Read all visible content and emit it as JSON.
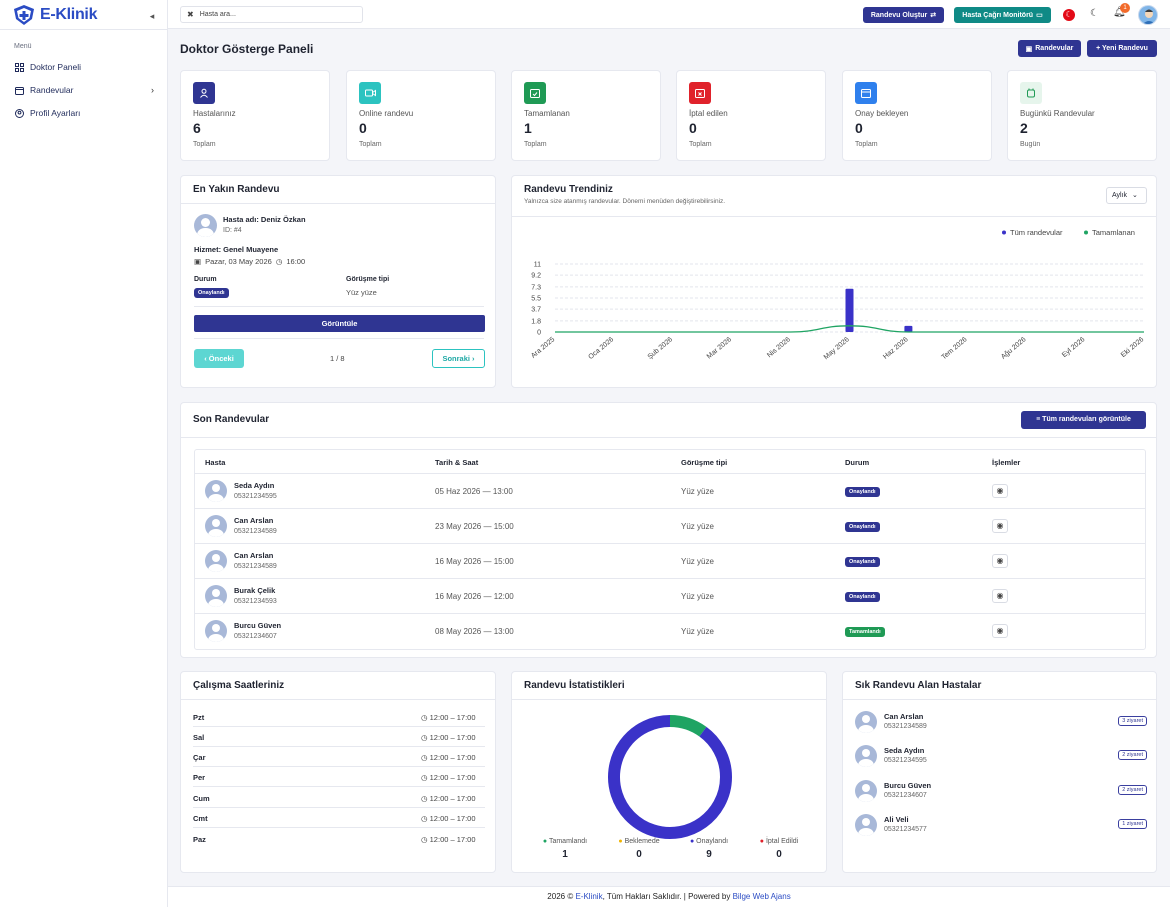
{
  "brand": {
    "name": "E-Klinik"
  },
  "sidebar": {
    "menu_label": "Menü",
    "items": [
      {
        "label": "Doktor Paneli",
        "icon": "grid-icon"
      },
      {
        "label": "Randevular",
        "icon": "calendar-icon"
      },
      {
        "label": "Profil Ayarları",
        "icon": "user-circle-icon"
      }
    ]
  },
  "topbar": {
    "search_placeholder": "Hasta ara...",
    "create_appointment": "Randevu Oluştur",
    "patient_call_monitor": "Hasta Çağrı Monitörü",
    "notification_count": "1",
    "colors": {
      "primary": "#2f3592",
      "teal": "#0f8a86",
      "flag": "#e30a17"
    }
  },
  "page": {
    "title": "Doktor Gösterge Paneli",
    "btn_appointments": "Randevular",
    "btn_new_appointment": "+ Yeni Randevu"
  },
  "stats": [
    {
      "label": "Hastalarınız",
      "value": "6",
      "sub": "Toplam",
      "color": "#2f3592",
      "icon": "user-icon"
    },
    {
      "label": "Online randevu",
      "value": "0",
      "sub": "Toplam",
      "color": "#2cc3c0",
      "icon": "video-icon"
    },
    {
      "label": "Tamamlanan",
      "value": "1",
      "sub": "Toplam",
      "color": "#1f9a55",
      "icon": "calendar-check-icon"
    },
    {
      "label": "İptal edilen",
      "value": "0",
      "sub": "Toplam",
      "color": "#e0222b",
      "icon": "calendar-x-icon"
    },
    {
      "label": "Onay bekleyen",
      "value": "0",
      "sub": "Toplam",
      "color": "#2f80ed",
      "icon": "calendar-clock-icon"
    },
    {
      "label": "Bugünkü Randevular",
      "value": "2",
      "sub": "Bugün",
      "color": "#e6f5ec",
      "icon": "alarm-icon"
    }
  ],
  "nearest": {
    "title": "En Yakın Randevu",
    "patient_label": "Hasta adı: Deniz Özkan",
    "id_label": "ID: #4",
    "service_label": "Hizmet: Genel Muayene",
    "date": "Pazar, 03 May 2026",
    "time": "16:00",
    "status_label": "Durum",
    "status_value": "Onaylandı",
    "type_label": "Görüşme tipi",
    "type_value": "Yüz yüze",
    "view_button": "Görüntüle",
    "prev": "‹ Önceki",
    "next": "Sonraki ›",
    "pager": "1 / 8"
  },
  "trend": {
    "title": "Randevu Trendiniz",
    "subtitle": "Yalnızca size atanmış randevular. Dönemi menüden değiştirebilirsiniz.",
    "period": "Aylık"
  },
  "chart_data": {
    "type": "bar",
    "categories": [
      "Ara 2025",
      "Oca 2026",
      "Şub 2026",
      "Mar 2026",
      "Nis 2026",
      "May 2026",
      "Haz 2026",
      "Tem 2026",
      "Ağu 2026",
      "Eyl 2026",
      "Eki 2026"
    ],
    "series": [
      {
        "name": "Tüm randevular",
        "type": "bar",
        "color": "#3a32c8",
        "values": [
          0,
          0,
          0,
          0,
          0,
          7,
          1,
          0,
          0,
          0,
          0
        ]
      },
      {
        "name": "Tamamlanan",
        "type": "line",
        "color": "#1fa463",
        "values": [
          0,
          0,
          0,
          0,
          0,
          1,
          0,
          0,
          0,
          0,
          0
        ]
      }
    ],
    "yticks": [
      "11",
      "9.2",
      "7.3",
      "5.5",
      "3.7",
      "1.8",
      "0"
    ],
    "ylim": [
      0,
      11
    ],
    "grid": true,
    "legend": "top-right"
  },
  "recent": {
    "title": "Son Randevular",
    "view_all": "Tüm randevuları görüntüle",
    "columns": [
      "Hasta",
      "Tarih & Saat",
      "Görüşme tipi",
      "Durum",
      "İşlemler"
    ],
    "rows": [
      {
        "name": "Seda Aydın",
        "phone": "05321234595",
        "date": "05 Haz 2026 — 13:00",
        "type": "Yüz yüze",
        "status": "Onaylandı",
        "status_color": "#2f3592"
      },
      {
        "name": "Can Arslan",
        "phone": "05321234589",
        "date": "23 May 2026 — 15:00",
        "type": "Yüz yüze",
        "status": "Onaylandı",
        "status_color": "#2f3592"
      },
      {
        "name": "Can Arslan",
        "phone": "05321234589",
        "date": "16 May 2026 — 15:00",
        "type": "Yüz yüze",
        "status": "Onaylandı",
        "status_color": "#2f3592"
      },
      {
        "name": "Burak Çelik",
        "phone": "05321234593",
        "date": "16 May 2026 — 12:00",
        "type": "Yüz yüze",
        "status": "Onaylandı",
        "status_color": "#2f3592"
      },
      {
        "name": "Burcu Güven",
        "phone": "05321234607",
        "date": "08 May 2026 — 13:00",
        "type": "Yüz yüze",
        "status": "Tamamlandı",
        "status_color": "#1f9a55"
      }
    ]
  },
  "hours": {
    "title": "Çalışma Saatleriniz",
    "rows": [
      {
        "day": "Pzt",
        "time": "12:00 – 17:00"
      },
      {
        "day": "Sal",
        "time": "12:00 – 17:00"
      },
      {
        "day": "Çar",
        "time": "12:00 – 17:00"
      },
      {
        "day": "Per",
        "time": "12:00 – 17:00"
      },
      {
        "day": "Cum",
        "time": "12:00 – 17:00"
      },
      {
        "day": "Cmt",
        "time": "12:00 – 17:00"
      },
      {
        "day": "Paz",
        "time": "12:00 – 17:00"
      }
    ]
  },
  "stats_donut": {
    "title": "Randevu İstatistikleri",
    "items": [
      {
        "label": "Tamamlandı",
        "value": 1,
        "color": "#1fa463"
      },
      {
        "label": "Beklemede",
        "value": 0,
        "color": "#f0b400"
      },
      {
        "label": "Onaylandı",
        "value": 9,
        "color": "#3a32c8"
      },
      {
        "label": "İptal Edildi",
        "value": 0,
        "color": "#e0222b"
      }
    ]
  },
  "frequent": {
    "title": "Sık Randevu Alan Hastalar",
    "rows": [
      {
        "name": "Can Arslan",
        "phone": "05321234589",
        "visits": "3 ziyaret"
      },
      {
        "name": "Seda Aydın",
        "phone": "05321234595",
        "visits": "2 ziyaret"
      },
      {
        "name": "Burcu Güven",
        "phone": "05321234607",
        "visits": "2 ziyaret"
      },
      {
        "name": "Ali Veli",
        "phone": "05321234577",
        "visits": "1 ziyaret"
      }
    ]
  },
  "footer": {
    "prefix": "2026 ©",
    "brand": "E-Klinik",
    "rights": ", Tüm Hakları Saklıdır. | Powered by",
    "agency": "Bilge Web Ajans"
  }
}
